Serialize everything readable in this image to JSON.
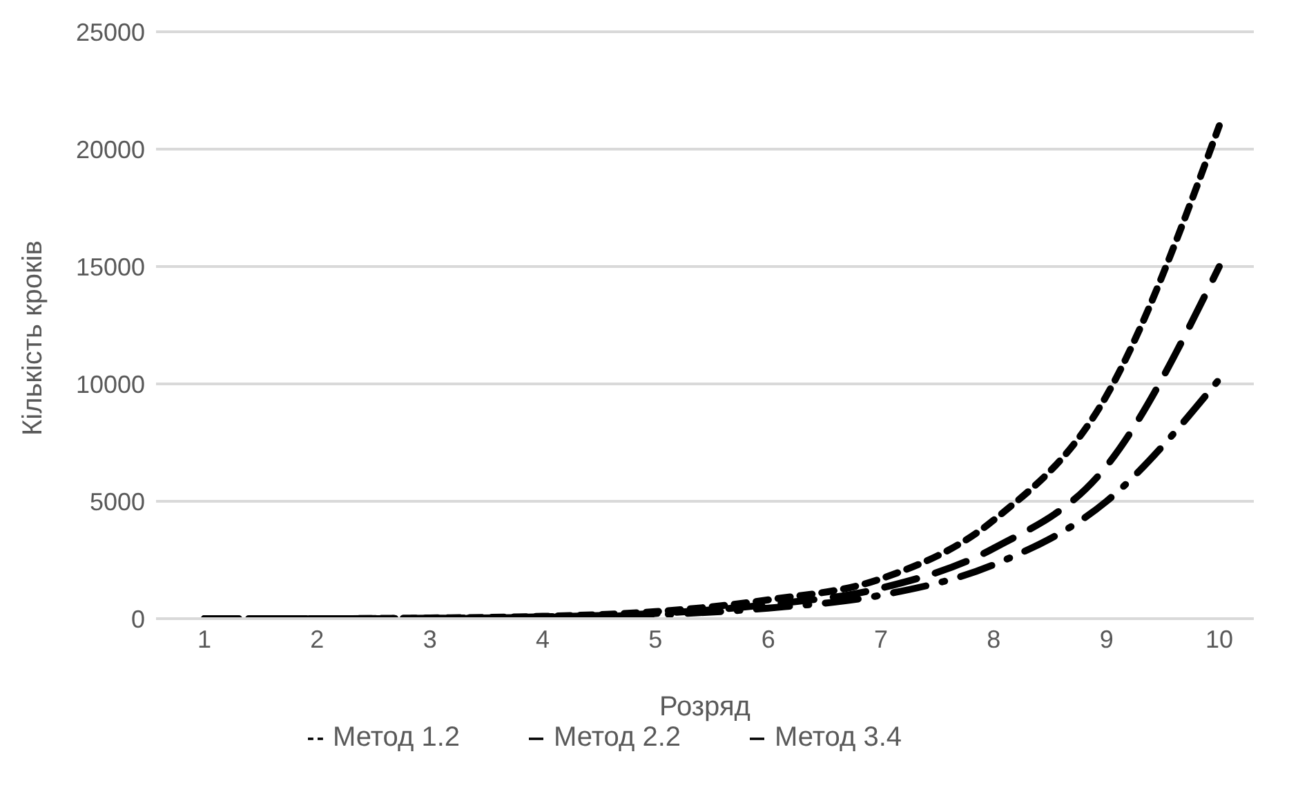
{
  "chart_data": {
    "type": "line",
    "xlabel": "Розряд",
    "ylabel": "Кількість кроків",
    "categories": [
      "1",
      "2",
      "3",
      "4",
      "5",
      "6",
      "7",
      "8",
      "9",
      "10"
    ],
    "series": [
      {
        "name": "Метод 1.2",
        "color": "#000000",
        "line_style": "dashed",
        "values": [
          0,
          0,
          30,
          100,
          300,
          800,
          1700,
          4200,
          9500,
          21000
        ]
      },
      {
        "name": "Метод 2.2",
        "color": "#000000",
        "line_style": "dashed",
        "values": [
          0,
          0,
          0,
          80,
          220,
          600,
          1300,
          3000,
          6500,
          15000
        ]
      },
      {
        "name": "Метод 3.4",
        "color": "#000000",
        "line_style": "dashed",
        "values": [
          0,
          0,
          20,
          60,
          170,
          450,
          1000,
          2300,
          5000,
          10200
        ]
      }
    ],
    "ylim": [
      0,
      25000
    ],
    "yticks": [
      0,
      5000,
      10000,
      15000,
      20000,
      25000
    ],
    "grid": "y",
    "legend": "bottom",
    "marker": "none"
  }
}
